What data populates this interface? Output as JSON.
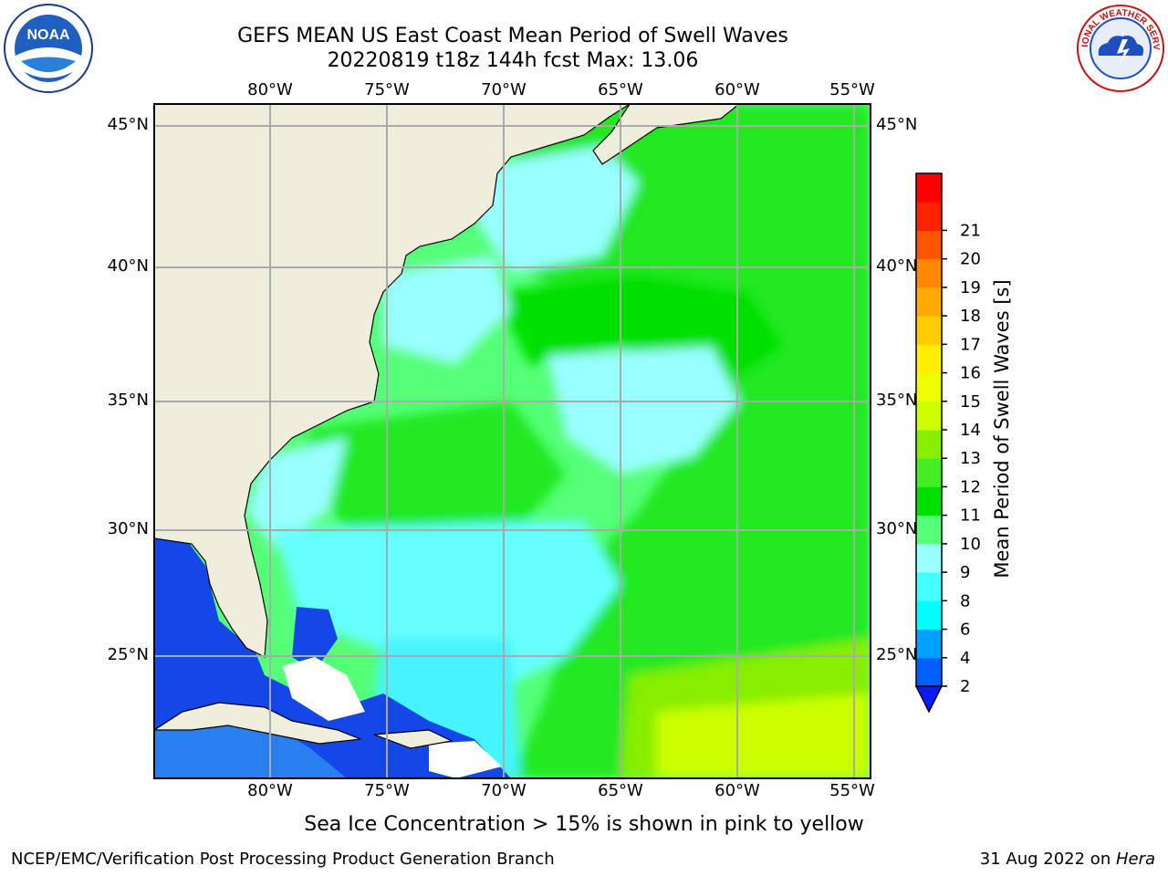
{
  "title": {
    "line1": "GEFS MEAN US East Coast Mean Period of Swell Waves",
    "line2": "20220819 t18z 144h fcst   Max: 13.06"
  },
  "map": {
    "lon_labels": [
      "80°W",
      "75°W",
      "70°W",
      "65°W",
      "60°W",
      "55°W"
    ],
    "lat_labels": [
      "45°N",
      "40°N",
      "35°N",
      "30°N",
      "25°N"
    ],
    "lon_range": [
      -85,
      -54.5
    ],
    "lat_range": [
      20.5,
      46
    ],
    "colors": {
      "land": "#efeddc",
      "ocean_low": "#1446e8",
      "grid": "#aaaaaa"
    }
  },
  "colorbar": {
    "label": "Mean Period of Swell Waves [s]",
    "ticks": [
      "2",
      "4",
      "6",
      "8",
      "9",
      "10",
      "11",
      "12",
      "13",
      "14",
      "15",
      "16",
      "17",
      "18",
      "19",
      "20",
      "21"
    ],
    "colors": [
      "#0060ff",
      "#00a0ff",
      "#00ffff",
      "#44ffff",
      "#99ffff",
      "#55ff77",
      "#00e000",
      "#44ee22",
      "#88ee00",
      "#ccff00",
      "#eeff00",
      "#ffee00",
      "#ffcc00",
      "#ffaa00",
      "#ff8800",
      "#ff5500",
      "#ff2200",
      "#ff0000"
    ],
    "under_color": "#0a1aff"
  },
  "notes": {
    "ice": "Sea Ice Concentration > 15% is shown in pink to yellow"
  },
  "footer": {
    "left": "NCEP/EMC/Verification Post Processing Product Generation Branch",
    "right_prefix": "31 Aug 2022 on ",
    "right_machine": "Hera"
  },
  "logos": {
    "left": "NOAA",
    "right_arc": "NATIONAL WEATHER SERVICE"
  }
}
